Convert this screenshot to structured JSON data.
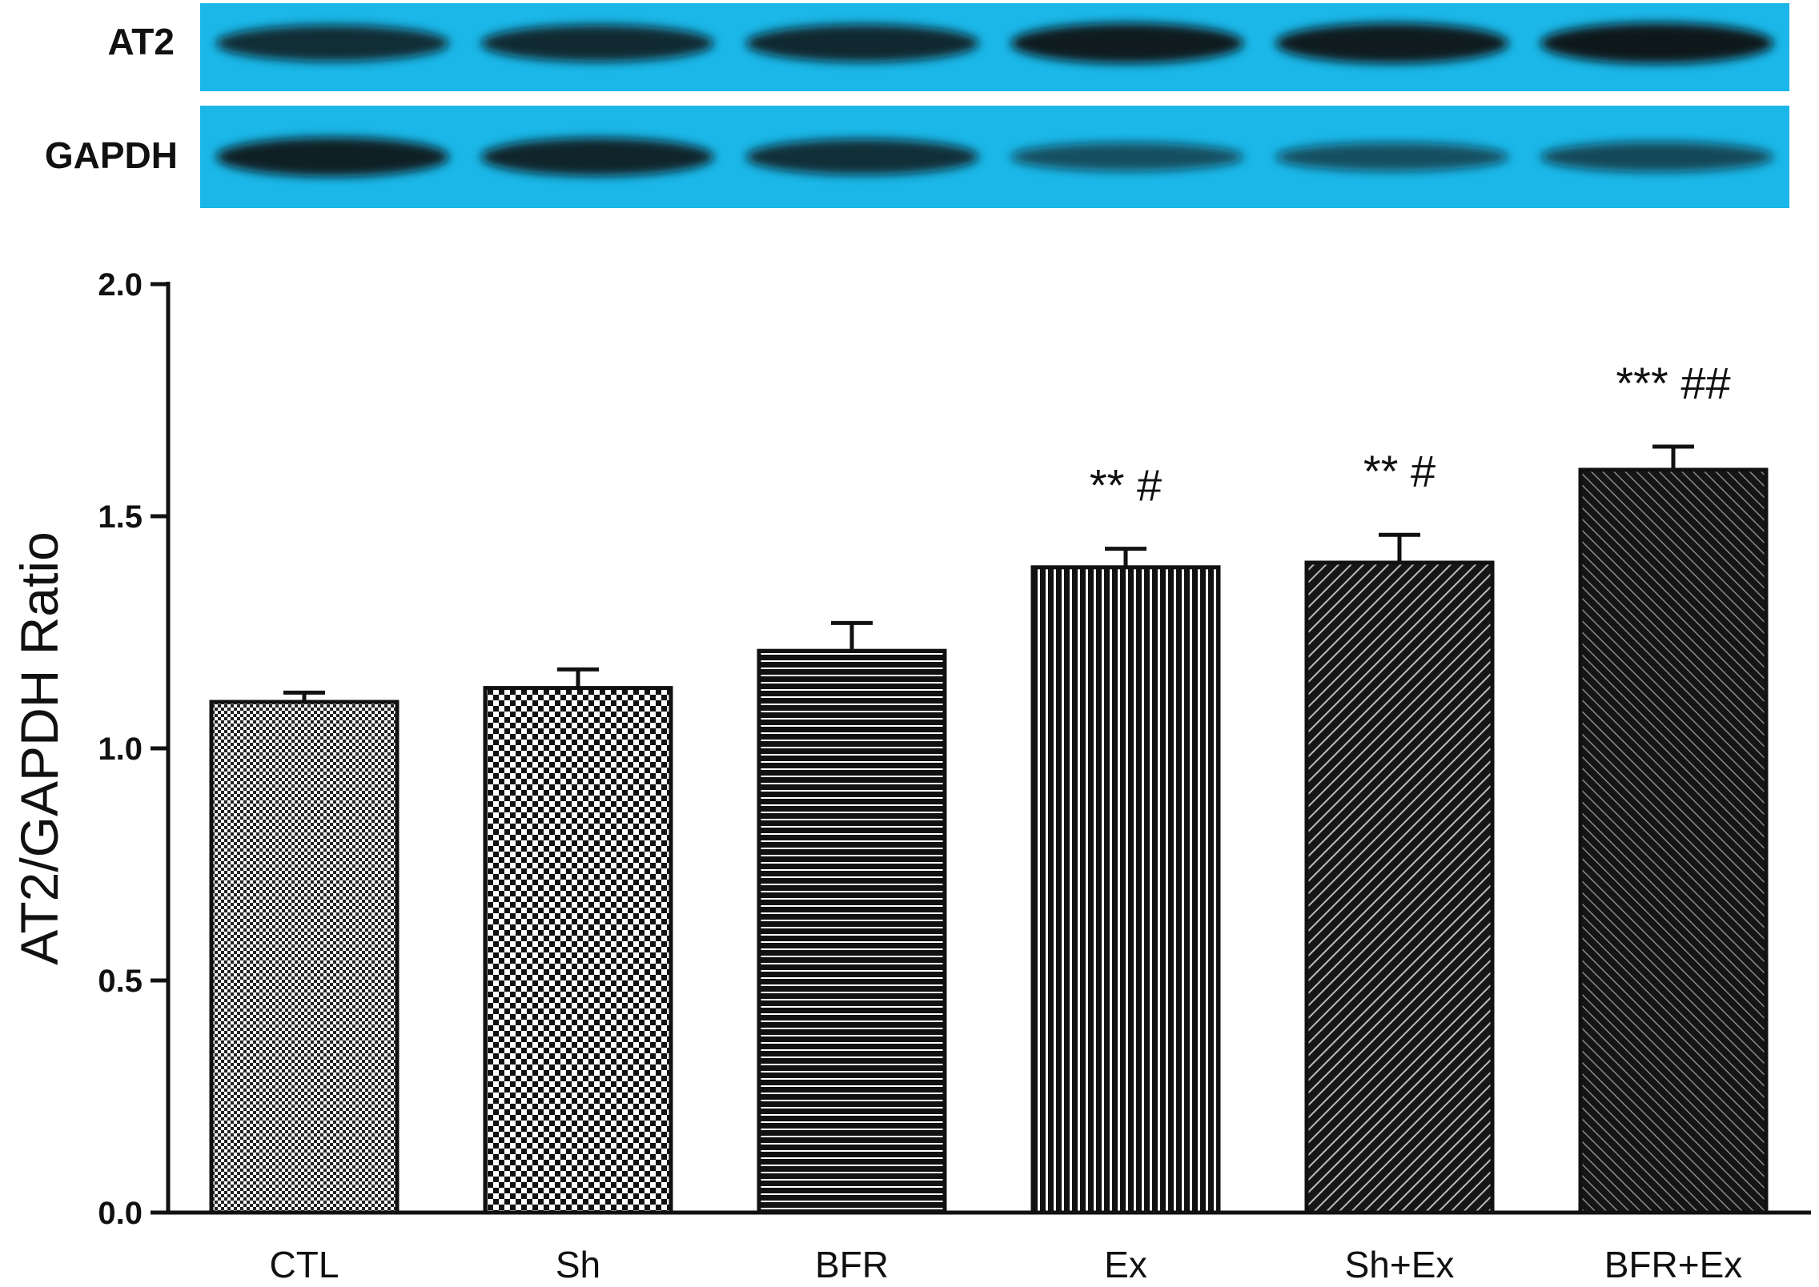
{
  "blot": {
    "rows": [
      {
        "label": "AT2",
        "band_intensity": [
          0.82,
          0.84,
          0.86,
          0.96,
          0.96,
          0.98
        ]
      },
      {
        "label": "GAPDH",
        "band_intensity": [
          0.92,
          0.88,
          0.8,
          0.55,
          0.55,
          0.6
        ]
      }
    ],
    "background_color": "#1ab7e8",
    "band_color": "#0b0d12"
  },
  "chart_data": {
    "type": "bar",
    "categories": [
      "CTL",
      "Sh",
      "BFR",
      "Ex",
      "Sh+Ex",
      "BFR+Ex"
    ],
    "values": [
      1.1,
      1.13,
      1.21,
      1.39,
      1.4,
      1.6
    ],
    "errors": [
      0.02,
      0.04,
      0.06,
      0.04,
      0.06,
      0.05
    ],
    "annotations": [
      "",
      "",
      "",
      "** #",
      "** #",
      "*** ##"
    ],
    "patterns": [
      "fine-checker",
      "checker",
      "horizontal-lines",
      "vertical-lines",
      "diagonal-lines",
      "dense-diagonal"
    ],
    "title": "",
    "xlabel": "",
    "ylabel": "AT2/GAPDH Ratio",
    "ylim": [
      0,
      2
    ],
    "yticks": [
      "0.0",
      "0.5",
      "1.0",
      "1.5",
      "2.0"
    ],
    "ytick_values": [
      0,
      0.5,
      1,
      1.5,
      2
    ],
    "grid": false,
    "bar_color": "#111111"
  }
}
